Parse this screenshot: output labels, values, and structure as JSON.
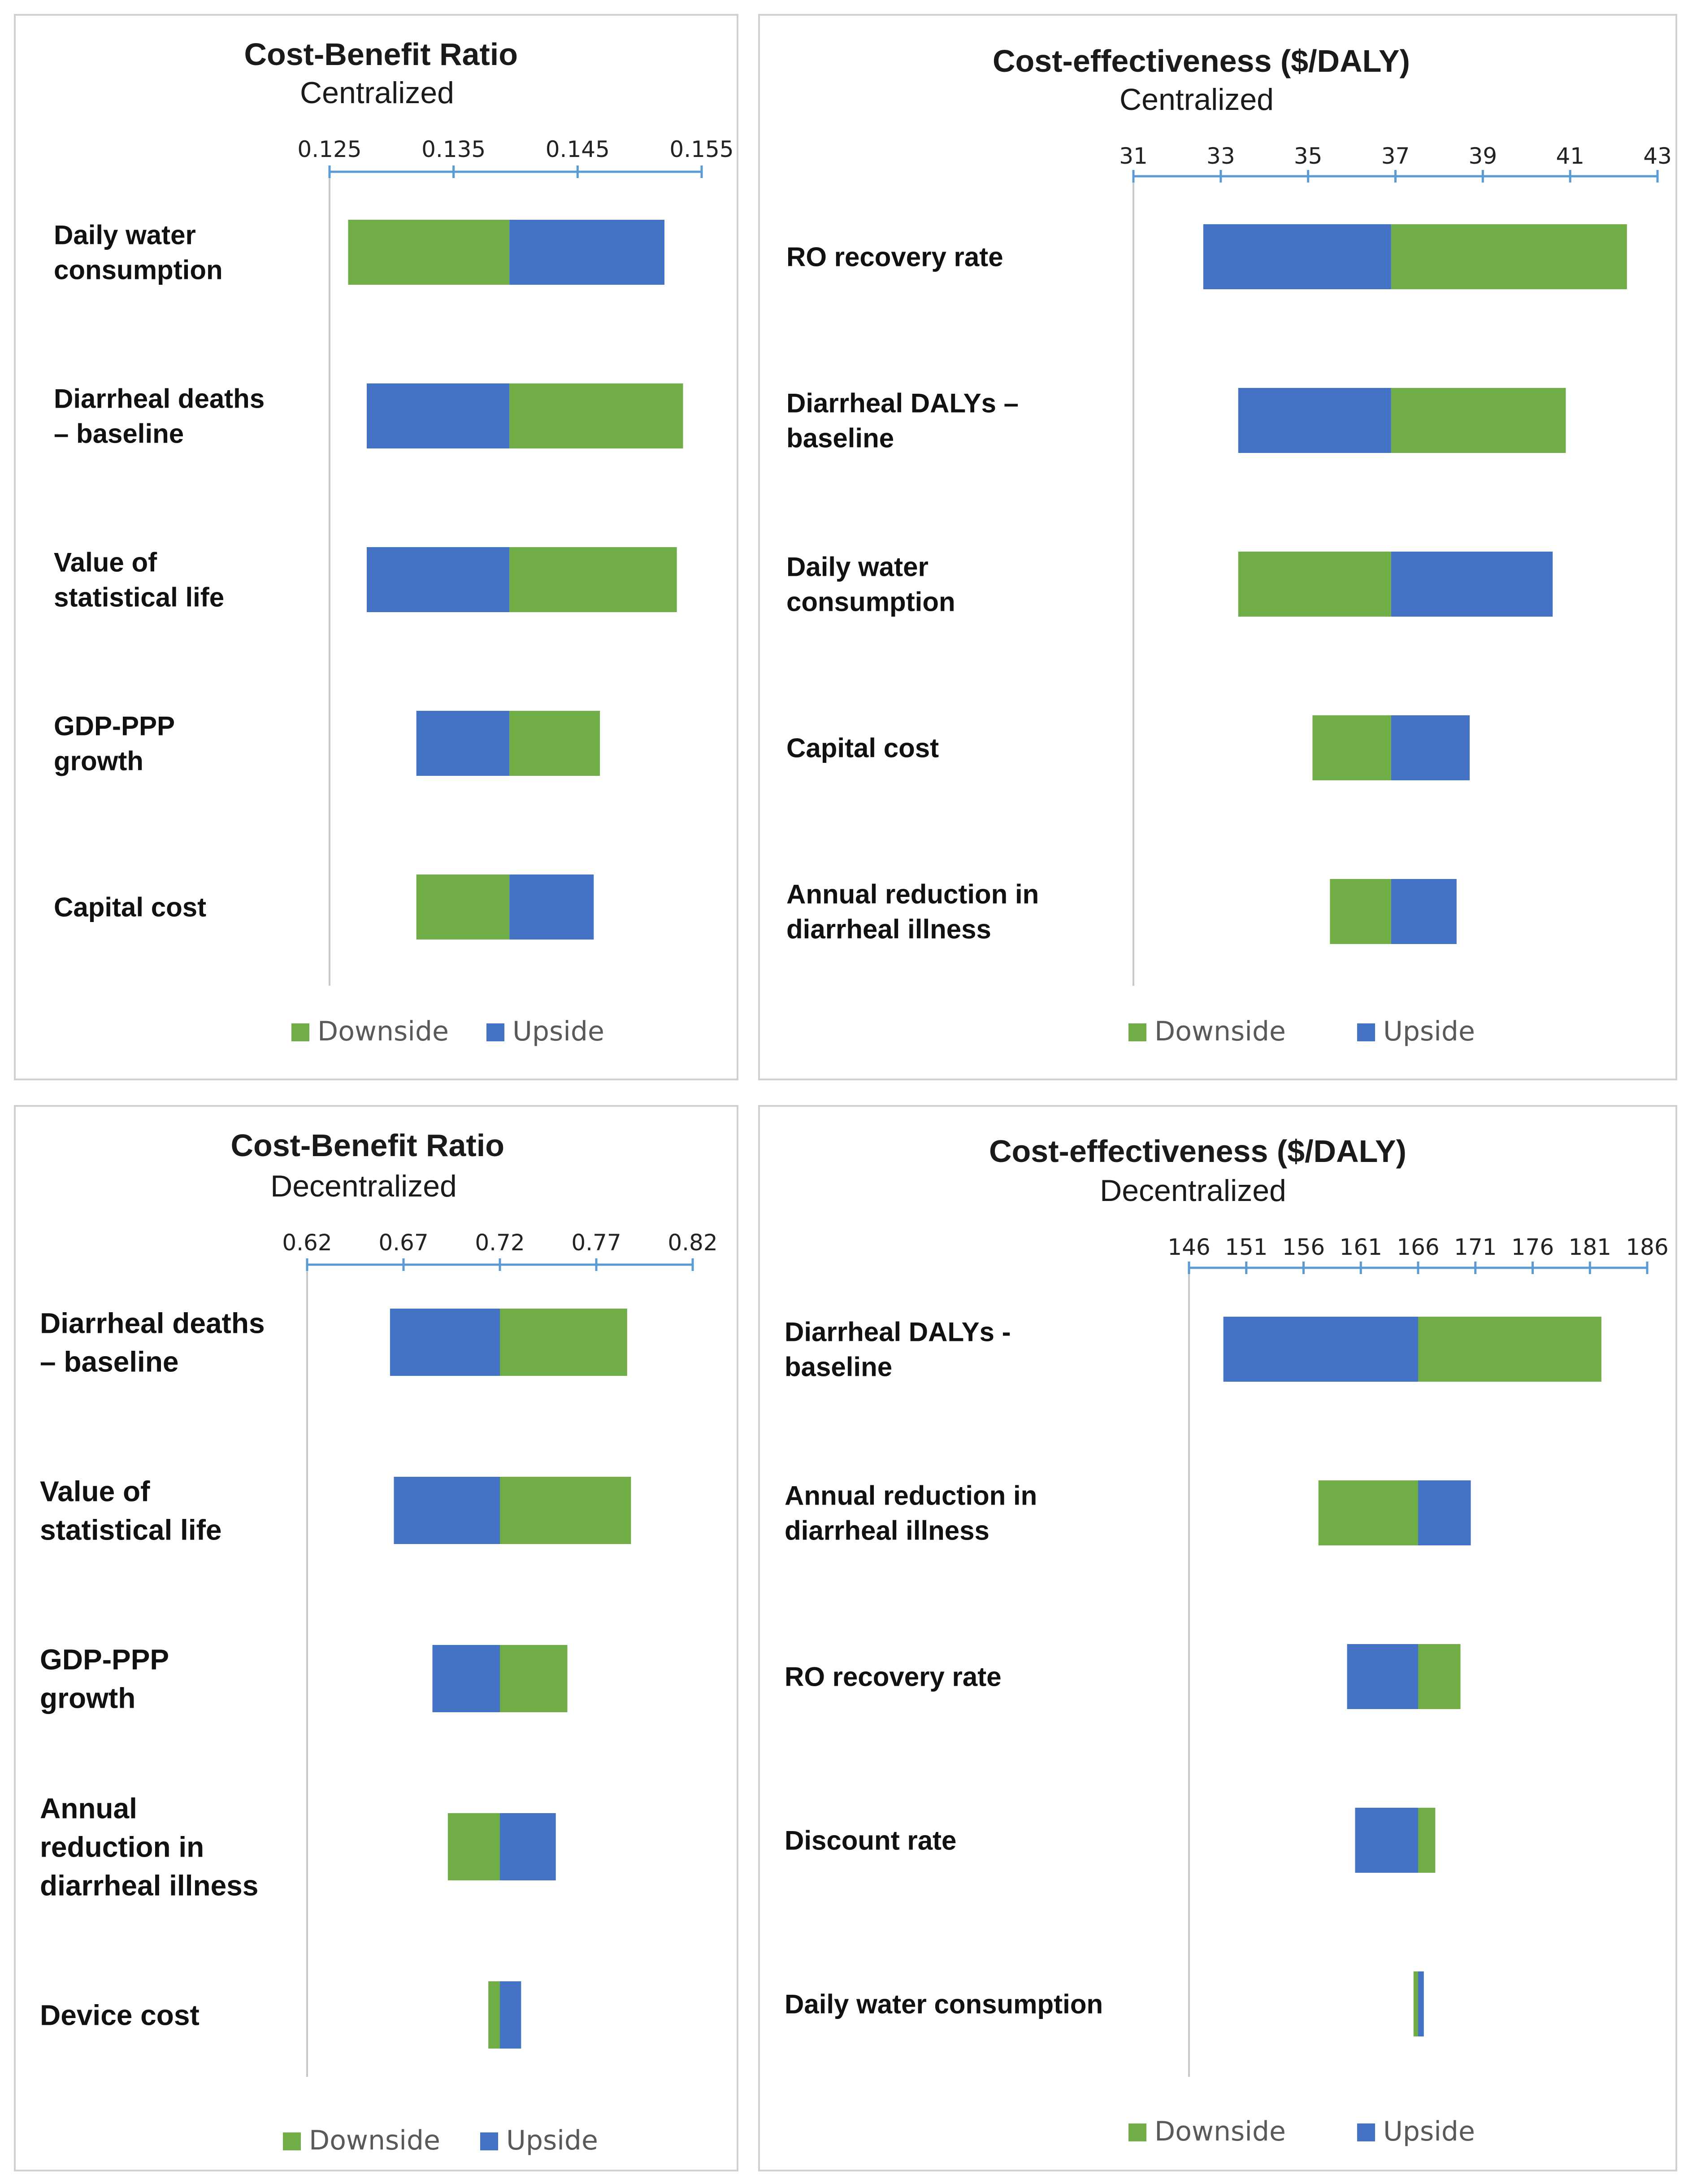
{
  "colors": {
    "downside": "#70ad47",
    "upside": "#4472c4",
    "axis": "#5b9bd5",
    "baseline": "#c8c8c8"
  },
  "chart_data": [
    {
      "type": "bar",
      "title": "Cost-Benefit Ratio",
      "subtitle": "Centralized",
      "xlim": [
        0.125,
        0.155
      ],
      "ticks": [
        "0.125",
        "0.135",
        "0.145",
        "0.155"
      ],
      "tick_values": [
        0.125,
        0.135,
        0.145,
        0.155
      ],
      "base": 0.1395,
      "categories": [
        {
          "lines": [
            "Daily water",
            "consumption"
          ],
          "downside": [
            0.1265,
            0.1395
          ],
          "upside": [
            0.1395,
            0.152
          ]
        },
        {
          "lines": [
            "Diarrheal deaths",
            "– baseline"
          ],
          "downside": [
            0.1395,
            0.1535
          ],
          "upside": [
            0.128,
            0.1395
          ]
        },
        {
          "lines": [
            "Value of",
            "statistical life"
          ],
          "downside": [
            0.1395,
            0.153
          ],
          "upside": [
            0.128,
            0.1395
          ]
        },
        {
          "lines": [
            "GDP-PPP",
            "growth"
          ],
          "downside": [
            0.1395,
            0.1468
          ],
          "upside": [
            0.132,
            0.1395
          ]
        },
        {
          "lines": [
            "Capital cost"
          ],
          "downside": [
            0.132,
            0.1395
          ],
          "upside": [
            0.1395,
            0.1463
          ]
        }
      ],
      "legend": [
        {
          "label": "Downside",
          "color": "#70ad47"
        },
        {
          "label": "Upside",
          "color": "#4472c4"
        }
      ]
    },
    {
      "type": "bar",
      "title": "Cost-effectiveness ($/DALY)",
      "subtitle": "Centralized",
      "xlim": [
        31,
        43
      ],
      "ticks": [
        "31",
        "33",
        "35",
        "37",
        "39",
        "41",
        "43"
      ],
      "tick_values": [
        31,
        33,
        35,
        37,
        39,
        41,
        43
      ],
      "base": 36.9,
      "categories": [
        {
          "lines": [
            "RO recovery rate"
          ],
          "downside": [
            36.9,
            42.3
          ],
          "upside": [
            32.6,
            36.9
          ]
        },
        {
          "lines": [
            "Diarrheal DALYs –",
            "baseline"
          ],
          "downside": [
            36.9,
            40.9
          ],
          "upside": [
            33.4,
            36.9
          ]
        },
        {
          "lines": [
            "Daily water",
            "consumption"
          ],
          "downside": [
            33.4,
            36.9
          ],
          "upside": [
            36.9,
            40.6
          ]
        },
        {
          "lines": [
            "Capital cost"
          ],
          "downside": [
            35.1,
            36.9
          ],
          "upside": [
            36.9,
            38.7
          ]
        },
        {
          "lines": [
            "Annual reduction in",
            "diarrheal illness"
          ],
          "downside": [
            35.5,
            36.9
          ],
          "upside": [
            36.9,
            38.4
          ]
        }
      ],
      "legend": [
        {
          "label": "Downside",
          "color": "#70ad47"
        },
        {
          "label": "Upside",
          "color": "#4472c4"
        }
      ]
    },
    {
      "type": "bar",
      "title": "Cost-Benefit Ratio",
      "subtitle": "Decentralized",
      "xlim": [
        0.62,
        0.82
      ],
      "ticks": [
        "0.62",
        "0.67",
        "0.72",
        "0.77",
        "0.82"
      ],
      "tick_values": [
        0.62,
        0.67,
        0.72,
        0.77,
        0.82
      ],
      "base": 0.72,
      "categories": [
        {
          "lines": [
            "Diarrheal deaths",
            "– baseline"
          ],
          "downside": [
            0.72,
            0.786
          ],
          "upside": [
            0.663,
            0.72
          ]
        },
        {
          "lines": [
            "Value of",
            "statistical life"
          ],
          "downside": [
            0.72,
            0.788
          ],
          "upside": [
            0.665,
            0.72
          ]
        },
        {
          "lines": [
            "GDP-PPP",
            "growth"
          ],
          "downside": [
            0.72,
            0.755
          ],
          "upside": [
            0.685,
            0.72
          ]
        },
        {
          "lines": [
            "Annual",
            "reduction in",
            "diarrheal illness"
          ],
          "downside": [
            0.693,
            0.72
          ],
          "upside": [
            0.72,
            0.749
          ]
        },
        {
          "lines": [
            "Device cost"
          ],
          "downside": [
            0.714,
            0.72
          ],
          "upside": [
            0.72,
            0.731
          ]
        }
      ],
      "legend": [
        {
          "label": "Downside",
          "color": "#70ad47"
        },
        {
          "label": "Upside",
          "color": "#4472c4"
        }
      ]
    },
    {
      "type": "bar",
      "title": "Cost-effectiveness ($/DALY)",
      "subtitle": "Decentralized",
      "xlim": [
        146,
        186
      ],
      "ticks": [
        "146",
        "151",
        "156",
        "161",
        "166",
        "171",
        "176",
        "181",
        "186"
      ],
      "tick_values": [
        146,
        151,
        156,
        161,
        166,
        171,
        176,
        181,
        186
      ],
      "base": 166,
      "categories": [
        {
          "lines": [
            "Diarrheal DALYs -",
            "baseline"
          ],
          "downside": [
            166,
            182
          ],
          "upside": [
            149,
            166
          ]
        },
        {
          "lines": [
            "Annual reduction in",
            "diarrheal illness"
          ],
          "downside": [
            157.3,
            166
          ],
          "upside": [
            166,
            170.6
          ]
        },
        {
          "lines": [
            "RO recovery rate"
          ],
          "downside": [
            166,
            169.7
          ],
          "upside": [
            159.8,
            166
          ]
        },
        {
          "lines": [
            "Discount rate"
          ],
          "downside": [
            166,
            167.5
          ],
          "upside": [
            160.5,
            166
          ]
        },
        {
          "lines": [
            "Daily water consumption"
          ],
          "downside": [
            165.6,
            166
          ],
          "upside": [
            166,
            166.5
          ]
        }
      ],
      "legend": [
        {
          "label": "Downside",
          "color": "#70ad47"
        },
        {
          "label": "Upside",
          "color": "#4472c4"
        }
      ]
    }
  ]
}
